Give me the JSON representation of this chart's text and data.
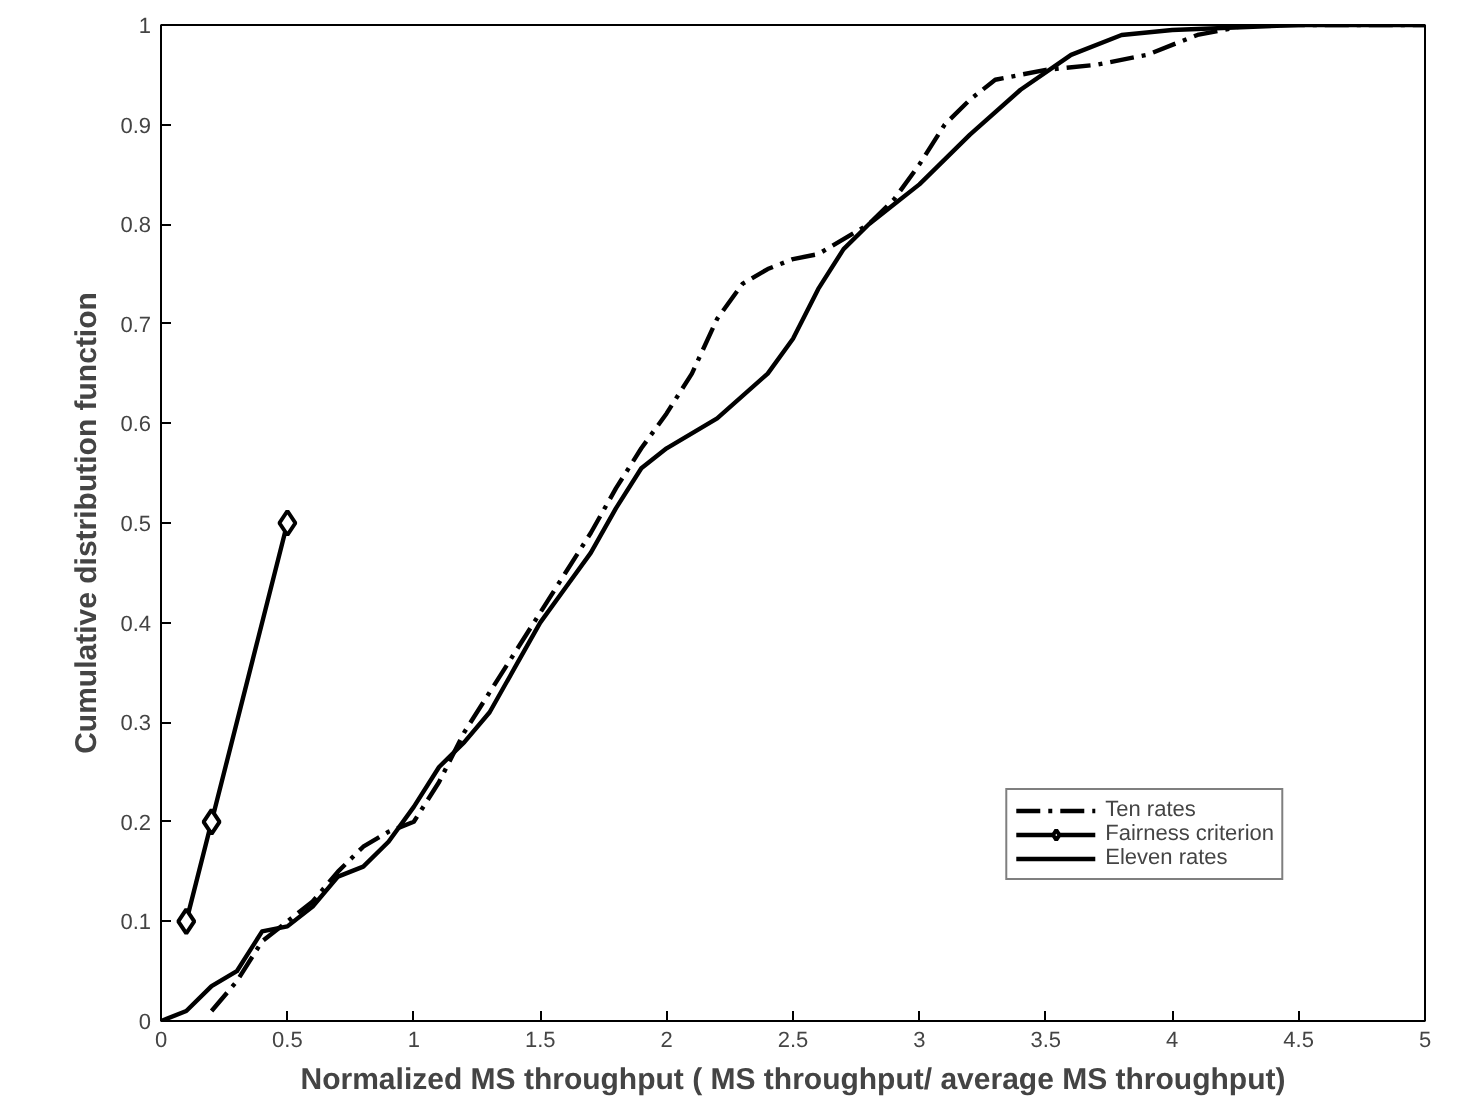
{
  "chart_data": {
    "type": "line",
    "xlabel": "Normalized MS throughput ( MS throughput/ average MS throughput)",
    "ylabel": "Cumulative distribution function",
    "xlim": [
      0,
      5
    ],
    "ylim": [
      0,
      1
    ],
    "xticks": [
      0,
      0.5,
      1,
      1.5,
      2,
      2.5,
      3,
      3.5,
      4,
      4.5,
      5
    ],
    "yticks": [
      0,
      0.1,
      0.2,
      0.3,
      0.4,
      0.5,
      0.6,
      0.7,
      0.8,
      0.9,
      1
    ],
    "grid": false,
    "legend": "bottom right",
    "series": [
      {
        "name": "Ten rates",
        "color": "#000000",
        "line_style": "dashed",
        "marker": "none",
        "x": [
          0.2,
          0.3,
          0.4,
          0.5,
          0.6,
          0.7,
          0.8,
          0.9,
          1.0,
          1.1,
          1.2,
          1.3,
          1.4,
          1.5,
          1.6,
          1.7,
          1.8,
          1.9,
          2.0,
          2.1,
          2.2,
          2.3,
          2.4,
          2.5,
          2.6,
          2.7,
          2.8,
          2.9,
          3.0,
          3.1,
          3.2,
          3.3,
          3.5,
          3.7,
          3.9,
          4.1,
          4.3,
          5
        ],
        "values": [
          0.01,
          0.04,
          0.08,
          0.1,
          0.12,
          0.15,
          0.175,
          0.19,
          0.2,
          0.24,
          0.29,
          0.33,
          0.37,
          0.41,
          0.45,
          0.49,
          0.535,
          0.575,
          0.61,
          0.65,
          0.705,
          0.74,
          0.755,
          0.765,
          0.77,
          0.785,
          0.8,
          0.825,
          0.86,
          0.9,
          0.925,
          0.945,
          0.955,
          0.96,
          0.97,
          0.99,
          1.0,
          1.0
        ]
      },
      {
        "name": "Fairness criterion",
        "color": "#000000",
        "line_style": "solid",
        "marker": "diamond",
        "x": [
          0.1,
          0.2,
          0.5
        ],
        "values": [
          0.1,
          0.2,
          0.5
        ]
      },
      {
        "name": "Eleven rates",
        "color": "#000000",
        "line_style": "solid",
        "marker": "none",
        "x": [
          0,
          0.1,
          0.2,
          0.3,
          0.4,
          0.5,
          0.6,
          0.7,
          0.8,
          0.9,
          1.0,
          1.1,
          1.2,
          1.3,
          1.4,
          1.5,
          1.6,
          1.7,
          1.8,
          1.9,
          2.0,
          2.2,
          2.4,
          2.5,
          2.6,
          2.7,
          2.8,
          2.9,
          3.0,
          3.2,
          3.4,
          3.6,
          3.8,
          4.0,
          4.5,
          5
        ],
        "values": [
          0,
          0.01,
          0.035,
          0.05,
          0.09,
          0.095,
          0.115,
          0.145,
          0.155,
          0.18,
          0.215,
          0.255,
          0.28,
          0.31,
          0.355,
          0.4,
          0.435,
          0.47,
          0.515,
          0.555,
          0.575,
          0.605,
          0.65,
          0.685,
          0.735,
          0.775,
          0.8,
          0.82,
          0.84,
          0.89,
          0.935,
          0.97,
          0.99,
          0.995,
          1.0,
          1.0
        ]
      }
    ]
  }
}
